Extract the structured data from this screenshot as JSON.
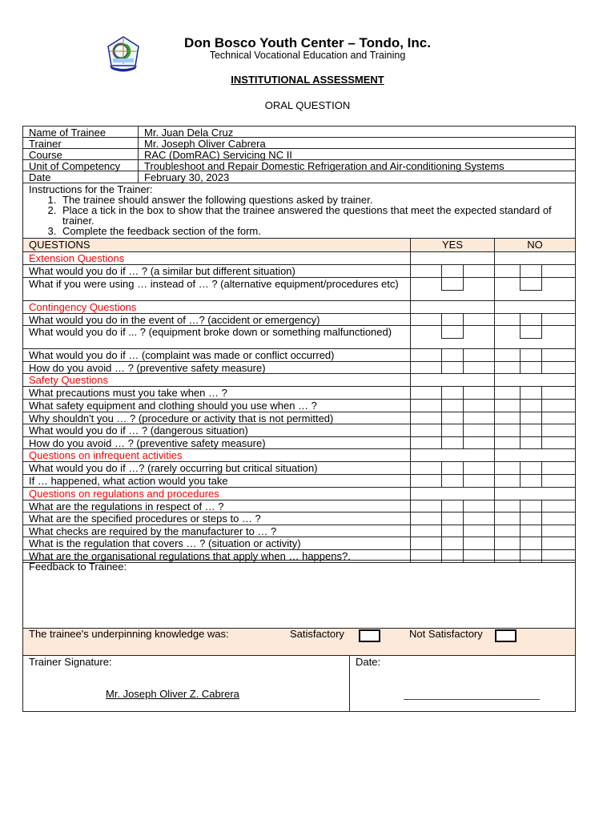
{
  "header": {
    "org": "Don Bosco Youth Center – Tondo, Inc.",
    "subtitle": "Technical Vocational Education and Training",
    "title": "INSTITUTIONAL ASSESSMENT",
    "form": "ORAL QUESTION"
  },
  "info": [
    {
      "label": "Name of Trainee",
      "value": "Mr. Juan Dela Cruz"
    },
    {
      "label": "Trainer",
      "value": "Mr. Joseph Oliver Cabrera"
    },
    {
      "label": "Course",
      "value": "RAC (DomRAC) Servicing NC II"
    },
    {
      "label": "Unit of Competency",
      "value": "Troubleshoot and Repair Domestic Refrigeration and Air-conditioning Systems"
    },
    {
      "label": "Date",
      "value": "February 30, 2023"
    }
  ],
  "instructions": {
    "title": "Instructions for the Trainer:",
    "items": [
      "The trainee should answer the following questions asked by trainer.",
      "Place a tick in the box to show that the trainee answered the questions that meet the expected standard of trainer.",
      "Complete the feedback section of the form."
    ]
  },
  "columns": {
    "questions": "QUESTIONS",
    "yes": "YES",
    "no": "NO"
  },
  "rows": [
    {
      "type": "section",
      "text": "Extension Questions"
    },
    {
      "type": "q",
      "text": "What would you do if … ? (a similar but different situation)"
    },
    {
      "type": "q",
      "text": "What if you were using … instead of … ? (alternative equipment/procedures etc)",
      "tall": true
    },
    {
      "type": "section",
      "text": "Contingency Questions"
    },
    {
      "type": "q",
      "text": "What would you do in the event of …? (accident or emergency)"
    },
    {
      "type": "q",
      "text": "What would you do if ... ? (equipment broke down or something malfunctioned)",
      "tall": true
    },
    {
      "type": "q",
      "text": "What would you do if … (complaint was made or conflict occurred)"
    },
    {
      "type": "q",
      "text": "How do you avoid … ? (preventive safety measure)"
    },
    {
      "type": "section",
      "text": "Safety Questions"
    },
    {
      "type": "q",
      "text": "What precautions must you take when … ?"
    },
    {
      "type": "q",
      "text": "What safety equipment and clothing should you use when … ?"
    },
    {
      "type": "q",
      "text": "Why shouldn't you … ? (procedure or activity that is not permitted)"
    },
    {
      "type": "q",
      "text": "What would you do if … ? (dangerous situation)"
    },
    {
      "type": "q",
      "text": "How do you avoid … ? (preventive safety measure)"
    },
    {
      "type": "section",
      "text": "Questions on infrequent activities"
    },
    {
      "type": "q",
      "text": "What would you do if …? (rarely occurring but critical situation)"
    },
    {
      "type": "q",
      "text": "If … happened, what action would you take"
    },
    {
      "type": "section",
      "text": "Questions on regulations and procedures"
    },
    {
      "type": "q",
      "text": "What are the regulations in respect of … ?"
    },
    {
      "type": "q",
      "text": "What are the specified procedures or steps to … ?"
    },
    {
      "type": "q",
      "text": "What checks are required by the manufacturer to … ?"
    },
    {
      "type": "q",
      "text": "What is the regulation that covers … ? (situation or activity)"
    },
    {
      "type": "q",
      "text": "What are the organisational regulations that apply when … happens?."
    }
  ],
  "feedback": {
    "label": "Feedback to Trainee:"
  },
  "result": {
    "label": "The trainee's underpinning knowledge was:",
    "satisfactory": "Satisfactory",
    "not_satisfactory": "Not Satisfactory"
  },
  "signature": {
    "label": "Trainer Signature:",
    "name": "Mr. Joseph Oliver Z. Cabrera",
    "date_label": "Date:"
  },
  "colors": {
    "section": "#ff0000",
    "header_bg": "#fde9d9"
  }
}
